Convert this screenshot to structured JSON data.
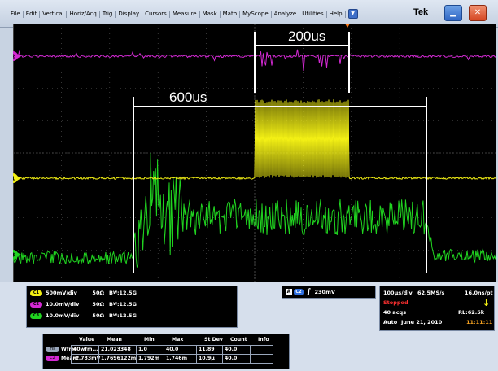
{
  "menu": {
    "items": [
      "File",
      "Edit",
      "Vertical",
      "Horiz/Acq",
      "Trig",
      "Display",
      "Cursors",
      "Measure",
      "Mask",
      "Math",
      "MyScope",
      "Analyze",
      "Utilities",
      "Help"
    ],
    "dropdown": "▼"
  },
  "brand": "Tek",
  "window": {
    "minimize": "▁",
    "close": "✕"
  },
  "cursors": {
    "a": "200us",
    "b": "600us"
  },
  "markers": {
    "ch1": "1",
    "ch2": "2",
    "ch3": "3"
  },
  "colors": {
    "ch1": "#f2ef14",
    "ch2": "#d429d4",
    "ch3": "#20d420",
    "grid": "#5a5a5a",
    "cursor": "#ffffff"
  },
  "channels": [
    {
      "badge": "C1",
      "scale": "500mV/div",
      "imp": "50Ω",
      "bw": "12.5G",
      "color": "#f2ef14"
    },
    {
      "badge": "C2",
      "scale": "10.0mV/div",
      "imp": "50Ω",
      "bw": "12.5G",
      "color": "#d429d4"
    },
    {
      "badge": "C3",
      "scale": "10.0mV/div",
      "imp": "50Ω",
      "bw": "12.5G",
      "color": "#20d420"
    }
  ],
  "bw_prefix": "B",
  "bw_sub": "W",
  "trigger": {
    "a": "A",
    "src": "C2",
    "slope": "∫",
    "level": "230mV"
  },
  "acq": {
    "horiz": "100μs/div",
    "rate": "62.5MS/s",
    "resolution": "16.0ns/pt",
    "state": "Stopped",
    "acqs": "40 acqs",
    "rl": "RL:62.5k",
    "mode": "Auto",
    "date": "June 21, 2010",
    "time": "11:11:11",
    "indicator": "↓"
  },
  "measurements": {
    "headers": [
      "Value",
      "Mean",
      "Min",
      "Max",
      "St Dev",
      "Count",
      "Info"
    ],
    "rows": [
      {
        "badge": "Hs",
        "label": "Wfms",
        "cells": [
          "40wfm...",
          "21.023348",
          "1.0",
          "40.0",
          "11.89",
          "40.0",
          ""
        ]
      },
      {
        "badge": "C2",
        "label": "Mean*",
        "cells": [
          "-1.783mV",
          "1.7696122m",
          "1.792m",
          "1.746m",
          "10.9μ",
          "40.0",
          ""
        ]
      }
    ]
  }
}
